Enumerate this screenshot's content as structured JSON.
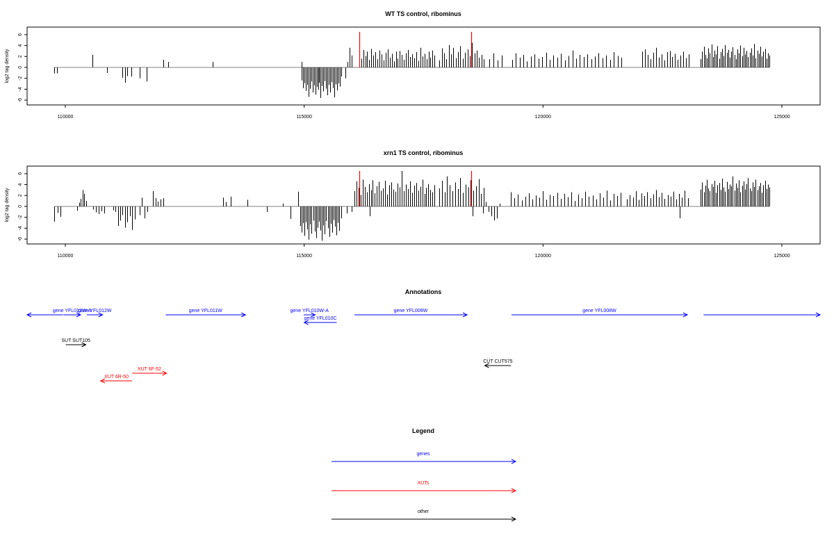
{
  "chart_data": [
    {
      "type": "bar",
      "title": "WT TS control, ribominus",
      "ylabel": "log2 tag density",
      "xlabel": "",
      "xlim": [
        109200,
        125800
      ],
      "ylim": [
        -6.5,
        7
      ],
      "xticks": [
        110000,
        115000,
        120000,
        125000
      ],
      "yticks": [
        6,
        4,
        2,
        0,
        -2,
        -4,
        -6
      ],
      "baseline_color": "#808080",
      "bar_color": "#000000",
      "highlight_color": "#ff0000",
      "highlights": [
        {
          "x": 116150,
          "value": 6.5
        },
        {
          "x": 118500,
          "value": 6.5
        }
      ],
      "bars": [
        {
          "x0": 109770,
          "x1": 109830,
          "values": [
            -1.1
          ]
        },
        {
          "x0": 109830,
          "x1": 109900,
          "values": [
            -1.1
          ]
        },
        {
          "x0": 110570,
          "x1": 110570,
          "values": [
            2.3
          ]
        },
        {
          "x0": 110870,
          "x1": 110870,
          "values": [
            -1.0
          ]
        },
        {
          "x0": 111200,
          "x1": 111300,
          "values": [
            -1.9,
            -2.8,
            -1.6
          ]
        },
        {
          "x0": 111380,
          "x1": 111400,
          "values": [
            -1.7
          ]
        },
        {
          "x0": 111550,
          "x1": 111700,
          "values": [
            -2.0,
            -2.6
          ]
        },
        {
          "x0": 112050,
          "x1": 112150,
          "values": [
            1.4,
            1.0
          ]
        },
        {
          "x0": 113080,
          "x1": 113080,
          "values": [
            1.0
          ]
        },
        {
          "x0": 114950,
          "x1": 114950,
          "values": [
            1.0
          ]
        },
        {
          "x0": 114950,
          "x1": 115770,
          "values": [
            -2.4,
            -3.8,
            -2.9,
            -4.3,
            -3.2,
            -5.4,
            -3.9,
            -2.6,
            -4.6,
            -3.3,
            -5.0,
            -3.6,
            -4.1,
            -2.8,
            -5.6,
            -3.4,
            -4.4,
            -2.5,
            -3.9,
            -5.1,
            -3.2,
            -4.6,
            -2.7,
            -3.8,
            -5.5,
            -3.1,
            -4.2,
            -2.9,
            -3.5,
            -1.7
          ]
        },
        {
          "x0": 115870,
          "x1": 116000,
          "values": [
            -2.0,
            1.0,
            3.6,
            2.2
          ]
        },
        {
          "x0": 116150,
          "x1": 117730,
          "values": [
            2.5,
            1.6,
            3.2,
            2.1,
            2.9,
            1.4,
            3.4,
            2.2,
            2.8,
            1.5,
            3.1,
            2.4,
            1.3,
            2.7,
            3.3,
            1.8,
            2.5,
            1.1,
            2.9,
            1.6,
            3.0,
            2.3,
            1.4,
            2.6,
            3.2,
            1.9,
            2.4,
            1.7,
            2.8,
            1.2,
            3.6,
            2.0,
            2.5,
            1.5,
            2.9,
            1.8,
            3.1,
            2.2
          ]
        },
        {
          "x0": 117830,
          "x1": 118760,
          "values": [
            1.3,
            3.5,
            2.6,
            1.5,
            4.1,
            2.4,
            3.6,
            1.7,
            2.8,
            3.9,
            1.6,
            2.7,
            3.3,
            2.1,
            4.5,
            2.6,
            3.1,
            1.8,
            2.3,
            1.5
          ]
        },
        {
          "x0": 118870,
          "x1": 119140,
          "values": [
            1.5,
            2.6,
            1.3,
            2.2
          ]
        },
        {
          "x0": 119350,
          "x1": 121640,
          "values": [
            1.4,
            2.6,
            1.8,
            2.3,
            1.1,
            2.0,
            2.4,
            1.6,
            1.9,
            2.7,
            1.4,
            2.2,
            1.8,
            2.5,
            1.3,
            2.1,
            3.1,
            1.6,
            2.3,
            1.9,
            2.4,
            1.5,
            2.0,
            2.6,
            1.7,
            2.2,
            1.4,
            2.8,
            2.1,
            1.8
          ]
        },
        {
          "x0": 122080,
          "x1": 123050,
          "values": [
            2.9,
            3.3,
            2.3,
            1.5,
            2.7,
            3.6,
            1.8,
            2.4,
            1.3,
            2.8,
            3.0,
            1.9,
            2.5,
            1.4,
            2.2,
            2.9,
            1.7,
            2.4
          ]
        },
        {
          "x0": 123300,
          "x1": 124740,
          "values": [
            1.5,
            2.9,
            3.8,
            2.3,
            1.7,
            3.5,
            2.6,
            4.2,
            1.9,
            3.1,
            2.4,
            3.9,
            1.6,
            2.8,
            3.4,
            2.1,
            4.1,
            2.7,
            3.2,
            1.8,
            2.9,
            3.7,
            2.3,
            1.5,
            3.3,
            2.6,
            4.0,
            2.1,
            3.6,
            2.4,
            3.0,
            1.9,
            2.7,
            3.5,
            2.2,
            4.3,
            1.7,
            3.1,
            2.5,
            3.8,
            2.0,
            2.9,
            3.4,
            1.6,
            2.6,
            2.2
          ]
        }
      ]
    },
    {
      "type": "bar",
      "title": "xrn1 TS control, ribominus",
      "ylabel": "log2 tag density",
      "xlabel": "",
      "xlim": [
        109200,
        125800
      ],
      "ylim": [
        -6.5,
        7
      ],
      "xticks": [
        110000,
        115000,
        120000,
        125000
      ],
      "yticks": [
        6,
        4,
        2,
        0,
        -2,
        -4,
        -6
      ],
      "baseline_color": "#808080",
      "bar_color": "#000000",
      "highlight_color": "#ff0000",
      "highlights": [
        {
          "x": 116150,
          "value": 6.5
        },
        {
          "x": 118500,
          "value": 6.5
        }
      ],
      "bars": [
        {
          "x0": 109770,
          "x1": 109900,
          "values": [
            -2.8,
            -1.2,
            -1.9
          ]
        },
        {
          "x0": 110250,
          "x1": 110430,
          "values": [
            -0.8,
            0.7,
            1.4,
            3.0,
            2.3,
            1.0
          ]
        },
        {
          "x0": 110580,
          "x1": 110820,
          "values": [
            -0.6,
            -1.1,
            -1.4,
            -0.9,
            -1.3
          ]
        },
        {
          "x0": 111000,
          "x1": 111450,
          "values": [
            -0.7,
            -1.0,
            -3.6,
            -2.6,
            -1.6,
            -3.9,
            -2.9,
            -1.8,
            -4.3,
            -2.4
          ]
        },
        {
          "x0": 111550,
          "x1": 111710,
          "values": [
            -1.6,
            1.6,
            -2.2,
            -1.0
          ]
        },
        {
          "x0": 111830,
          "x1": 112050,
          "values": [
            2.8,
            1.5,
            0.9,
            1.3,
            1.5
          ]
        },
        {
          "x0": 113300,
          "x1": 113360,
          "values": [
            1.6,
            0.8
          ]
        },
        {
          "x0": 113460,
          "x1": 113480,
          "values": [
            1.8
          ]
        },
        {
          "x0": 113810,
          "x1": 113850,
          "values": [
            1.2
          ]
        },
        {
          "x0": 114220,
          "x1": 114220,
          "values": [
            -1.0
          ]
        },
        {
          "x0": 114550,
          "x1": 114570,
          "values": [
            0.5
          ]
        },
        {
          "x0": 114720,
          "x1": 114720,
          "values": [
            -2.3
          ]
        },
        {
          "x0": 114880,
          "x1": 115770,
          "values": [
            2.7,
            -3.6,
            -4.8,
            -3.1,
            -5.4,
            -2.9,
            -4.2,
            -6.1,
            -3.3,
            -5.0,
            -2.6,
            -4.6,
            -5.8,
            -3.9,
            -2.8,
            -4.4,
            -6.3,
            -3.5,
            -5.1,
            -2.7,
            -4.0,
            -5.6,
            -3.2,
            -4.8,
            -2.5,
            -3.7,
            -5.3,
            -3.0,
            -4.5,
            -2.2
          ]
        },
        {
          "x0": 115890,
          "x1": 116000,
          "values": [
            -1.3,
            -1.0
          ]
        },
        {
          "x0": 116050,
          "x1": 117730,
          "values": [
            2.8,
            4.6,
            3.4,
            2.1,
            4.9,
            3.6,
            2.6,
            4.1,
            3.0,
            4.8,
            2.4,
            3.7,
            4.5,
            2.9,
            3.3,
            4.7,
            2.2,
            3.9,
            4.4,
            3.1,
            2.7,
            4.2,
            3.5,
            6.5,
            2.8,
            4.0,
            3.2,
            4.6,
            2.5,
            3.8,
            4.3,
            2.9,
            3.6,
            4.9,
            2.3,
            3.4,
            4.1,
            3.0,
            2.6,
            3.9
          ]
        },
        {
          "x0": 116370,
          "x1": 116370,
          "values": [
            -1.8
          ]
        },
        {
          "x0": 117830,
          "x1": 118760,
          "values": [
            3.3,
            4.7,
            2.6,
            5.5,
            3.9,
            2.8,
            4.4,
            3.2,
            5.2,
            2.5,
            4.0,
            3.5,
            4.8,
            2.9,
            3.7,
            5.0,
            2.3,
            3.4
          ]
        },
        {
          "x0": 118520,
          "x1": 118520,
          "values": [
            -1.8
          ]
        },
        {
          "x0": 118750,
          "x1": 119100,
          "values": [
            -1.3,
            0.8,
            -1.0,
            -1.8,
            -2.6,
            -2.2,
            0.5
          ]
        },
        {
          "x0": 119330,
          "x1": 121630,
          "values": [
            2.6,
            1.5,
            2.2,
            1.1,
            1.8,
            2.4,
            1.3,
            2.0,
            1.6,
            2.8,
            1.2,
            2.1,
            1.9,
            2.5,
            1.4,
            2.3,
            1.7,
            2.6,
            1.0,
            2.2,
            1.5,
            2.7,
            1.8,
            2.0,
            1.3,
            2.4,
            1.6,
            2.9,
            1.1,
            2.3,
            1.9,
            2.5
          ]
        },
        {
          "x0": 121760,
          "x1": 123030,
          "values": [
            1.3,
            2.1,
            1.6,
            2.8,
            1.2,
            2.4,
            1.9,
            2.6,
            1.5,
            2.2,
            3.0,
            1.7,
            2.5,
            1.4,
            2.1,
            1.8,
            2.7,
            1.3,
            2.3,
            1.6,
            2.9,
            1.5
          ]
        },
        {
          "x0": 122860,
          "x1": 122860,
          "values": [
            -2.2
          ]
        },
        {
          "x0": 123300,
          "x1": 124740,
          "values": [
            3.1,
            4.4,
            2.6,
            3.8,
            4.9,
            3.3,
            2.8,
            4.1,
            3.6,
            4.7,
            2.5,
            3.9,
            4.3,
            3.0,
            5.1,
            3.5,
            2.7,
            4.5,
            3.2,
            4.0,
            3.7,
            5.5,
            2.9,
            4.2,
            3.4,
            4.8,
            2.6,
            3.8,
            4.6,
            3.1,
            4.1,
            5.2,
            3.3,
            2.8,
            4.4,
            3.6,
            4.9,
            3.0,
            3.7,
            4.3,
            2.5,
            3.9,
            4.7,
            3.2,
            4.0,
            3.5
          ]
        }
      ]
    }
  ],
  "annotations": {
    "title": "Annotations",
    "xlim": [
      109200,
      125800
    ],
    "features": [
      {
        "label": "",
        "x0": 109200,
        "x1": 109950,
        "strand": "-",
        "color": "#0000ff",
        "row": 0
      },
      {
        "label": "gene YFL012W-A",
        "x0": 109960,
        "x1": 110320,
        "strand": "+",
        "color": "#0000ff",
        "row": 0
      },
      {
        "label": "gene YFL012W",
        "x0": 110450,
        "x1": 110780,
        "strand": "+",
        "color": "#0000ff",
        "row": 0
      },
      {
        "label": "gene YFL011W",
        "x0": 112100,
        "x1": 113770,
        "strand": "+",
        "color": "#0000ff",
        "row": 0
      },
      {
        "label": "gene YFL010W-A",
        "x0": 114990,
        "x1": 115230,
        "strand": "+",
        "color": "#0000ff",
        "row": 0
      },
      {
        "label": "gene YFL010C",
        "x0": 115000,
        "x1": 115680,
        "strand": "-",
        "color": "#0000ff",
        "row": 1
      },
      {
        "label": "gene YFL009W",
        "x0": 116050,
        "x1": 118410,
        "strand": "+",
        "color": "#0000ff",
        "row": 0
      },
      {
        "label": "gene YFL008W",
        "x0": 119340,
        "x1": 123020,
        "strand": "+",
        "color": "#0000ff",
        "row": 0
      },
      {
        "label": "",
        "x0": 123360,
        "x1": 125800,
        "strand": "+",
        "color": "#0000ff",
        "row": 0
      },
      {
        "label": "SUT SUT105",
        "x0": 110010,
        "x1": 110430,
        "strand": "+",
        "color": "#000000",
        "row": 2
      },
      {
        "label": "CUT CUT575",
        "x0": 118780,
        "x1": 119330,
        "strand": "-",
        "color": "#000000",
        "row": 3
      },
      {
        "label": "XUT 6F-52",
        "x0": 111400,
        "x1": 112120,
        "strand": "+",
        "color": "#ff0000",
        "row": 4
      },
      {
        "label": "XUT 6R-50",
        "x0": 110740,
        "x1": 111400,
        "strand": "-",
        "color": "#ff0000",
        "row": 5
      }
    ]
  },
  "legend": {
    "title": "Legend",
    "items": [
      {
        "label": "genes",
        "color": "#0000ff"
      },
      {
        "label": "XUTs",
        "color": "#ff0000"
      },
      {
        "label": "other",
        "color": "#000000"
      }
    ]
  }
}
